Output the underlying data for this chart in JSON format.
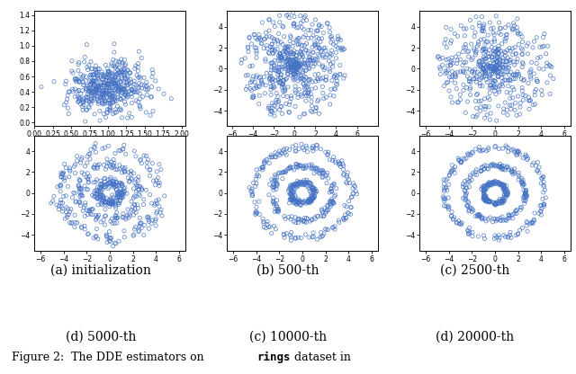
{
  "subplot_labels": [
    "(a) initialization",
    "(b) 500-th",
    "(c) 2500-th",
    "(d) 5000-th",
    "(c) 10000-th",
    "(d) 20000-th"
  ],
  "point_color": "#4472C4",
  "marker_size": 3,
  "seed": 42,
  "font_size_label": 10,
  "font_size_caption": 9,
  "panel0": {
    "xlim": [
      0.0,
      2.05
    ],
    "ylim": [
      -0.05,
      1.45
    ],
    "xticks": [
      0.0,
      0.25,
      0.5,
      0.75,
      1.0,
      1.25,
      1.5,
      1.75,
      2.0
    ],
    "yticks": [
      0.0,
      0.2,
      0.4,
      0.6,
      0.8,
      1.0,
      1.2,
      1.4
    ]
  },
  "panel1": {
    "xlim": [
      -6.5,
      8.0
    ],
    "ylim": [
      -5.5,
      5.5
    ],
    "xticks": [
      -6,
      -4,
      -2,
      0,
      2,
      4,
      6
    ],
    "yticks": [
      -4,
      -2,
      0,
      2,
      4
    ]
  },
  "panel2": {
    "xlim": [
      -6.5,
      6.5
    ],
    "ylim": [
      -5.5,
      5.5
    ],
    "xticks": [
      -6,
      -4,
      -2,
      0,
      2,
      4,
      6
    ],
    "yticks": [
      -4,
      -2,
      0,
      2,
      4
    ]
  },
  "panel3": {
    "xlim": [
      -6.5,
      6.5
    ],
    "ylim": [
      -5.5,
      5.5
    ],
    "xticks": [
      -6,
      -4,
      -2,
      0,
      2,
      4,
      6
    ],
    "yticks": [
      -4,
      -2,
      0,
      2,
      4
    ]
  },
  "panel4": {
    "xlim": [
      -6.5,
      6.5
    ],
    "ylim": [
      -5.5,
      5.5
    ],
    "xticks": [
      -6,
      -4,
      -2,
      0,
      2,
      4,
      6
    ],
    "yticks": [
      -4,
      -2,
      0,
      2,
      4
    ]
  },
  "panel5": {
    "xlim": [
      -6.5,
      6.5
    ],
    "ylim": [
      -5.5,
      5.5
    ],
    "xticks": [
      -6,
      -4,
      -2,
      0,
      2,
      4,
      6
    ],
    "yticks": [
      -4,
      -2,
      0,
      2,
      4
    ]
  }
}
